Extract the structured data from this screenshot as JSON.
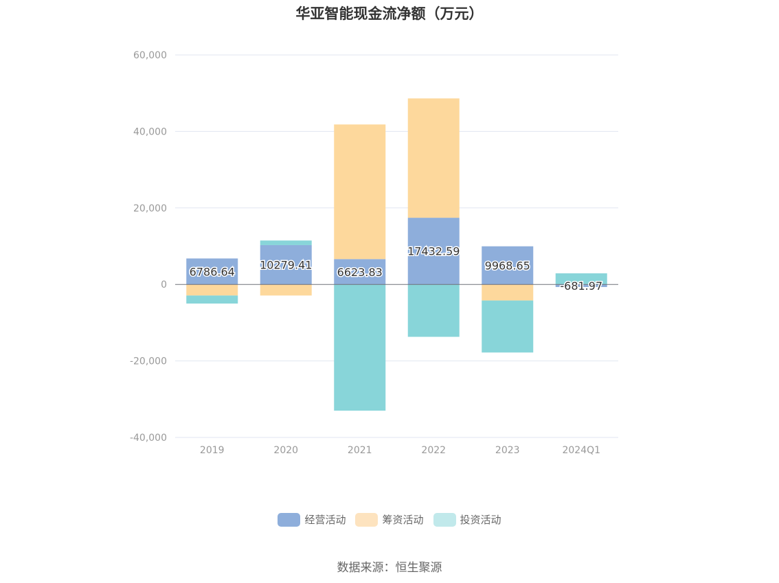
{
  "chart_data": {
    "type": "bar",
    "stacked": true,
    "title": "华亚智能现金流净额（万元）",
    "categories": [
      "2019",
      "2020",
      "2021",
      "2022",
      "2023",
      "2024Q1"
    ],
    "series": [
      {
        "name": "经营活动",
        "color": "#8eaedb",
        "values": [
          6786.64,
          10279.41,
          6623.83,
          17432.59,
          9968.65,
          -681.97
        ],
        "labels": [
          "6786.64",
          "10279.41",
          "6623.83",
          "17432.59",
          "9968.65",
          "-681.97"
        ]
      },
      {
        "name": "筹资活动",
        "color": "#fdd89c",
        "values": [
          -2900,
          -2900,
          35200,
          31200,
          -4200,
          0
        ]
      },
      {
        "name": "投资活动",
        "color": "#88d5d9",
        "values": [
          -2100,
          1200,
          -33000,
          -13700,
          -13600,
          2900
        ]
      }
    ],
    "yticks": [
      60000,
      40000,
      20000,
      0,
      -20000,
      -40000
    ],
    "yticklabels": [
      "60,000",
      "40,000",
      "20,000",
      "0",
      "-20,000",
      "-40,000"
    ],
    "ylim": [
      -40000,
      60000
    ],
    "grid": true,
    "legend_position": "bottom"
  },
  "legend": [
    {
      "label": "经营活动",
      "color": "#8eaedb"
    },
    {
      "label": "筹资活动",
      "color": "#fde3bf"
    },
    {
      "label": "投资活动",
      "color": "#c1e9eb"
    }
  ],
  "source_text": "数据来源：恒生聚源"
}
